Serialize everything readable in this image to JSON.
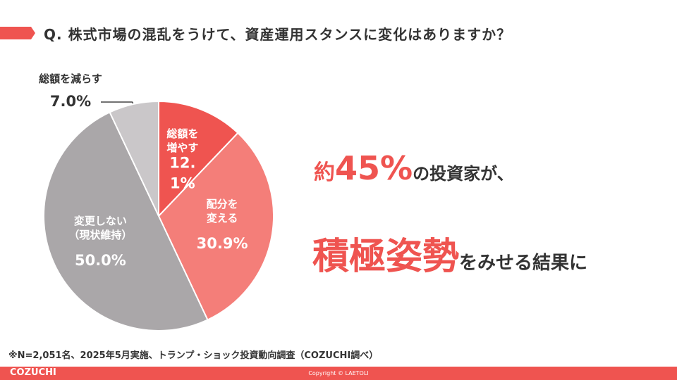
{
  "header": {
    "title": "Q. 株式市場の混乱をうけて、資産運用スタンスに変化はありますか？"
  },
  "chart_data": {
    "type": "pie",
    "categories": [
      "総額を\n増やす",
      "配分を\n変える",
      "変更しない\n（現状維持）",
      "総額を減らす"
    ],
    "values": [
      12.1,
      30.9,
      50.0,
      7.0
    ],
    "value_labels": [
      "12.1%",
      "30.9%",
      "50.0%",
      "7.0%"
    ],
    "colors": [
      "#ef5450",
      "#f47e79",
      "#aaa7a9",
      "#cac7c9"
    ]
  },
  "headline": {
    "line1": {
      "prefix": "約",
      "emphasis": "45%",
      "suffix": "の投資家が、"
    },
    "line2": {
      "emphasis": "積極姿勢",
      "suffix": "をみせる結果に"
    }
  },
  "footnote": "※N=2,051名、2025年5月実施、トランプ・ショック投資動向調査（COZUCHI調べ）",
  "footer": {
    "brand": "COZUCHI",
    "copyright": "Copyright © LAETOLI"
  }
}
